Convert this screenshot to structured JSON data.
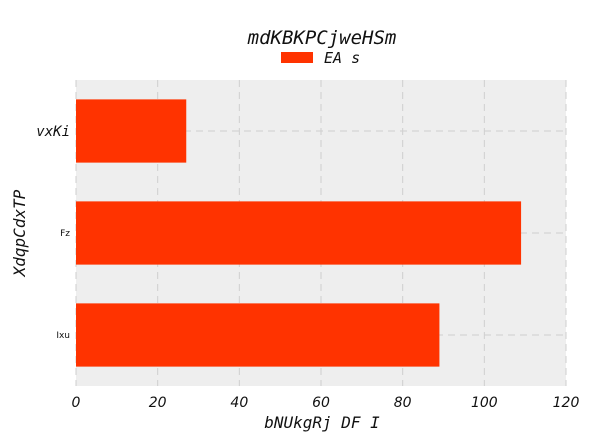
{
  "chart_data": {
    "type": "bar",
    "orientation": "horizontal",
    "title": "mdKBKPCjweHSm",
    "xlabel": "bNUkgRj DF I",
    "ylabel": "XdqpCdxTP",
    "categories": [
      "vxKi",
      "Fz",
      "Ixu"
    ],
    "series": [
      {
        "name": "EA s",
        "values": [
          27,
          109,
          89
        ],
        "color": "#ff3300"
      }
    ],
    "xlim": [
      0,
      120
    ],
    "xticks": [
      "0",
      "20",
      "40",
      "60",
      "80",
      "100",
      "120"
    ],
    "grid": true,
    "legend_position": "top-center",
    "background_color": "#eeeeee"
  }
}
